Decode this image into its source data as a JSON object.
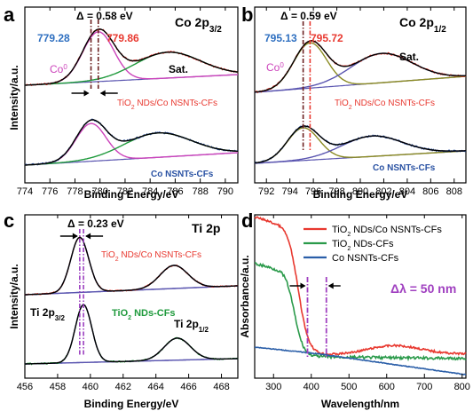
{
  "colors": {
    "black": "#000000",
    "red": "#e8382f",
    "blue": "#2a52a3",
    "green": "#1f9a3c",
    "magenta": "#cc44bb",
    "olive": "#8a8a22",
    "purple": "#5a55b0",
    "value_blue": "#2e6fc0",
    "dashdot_dark": "#6b1f1f",
    "dashdot_violet": "#9b3fc0",
    "spectrum_green": "#2a9a4a",
    "spectrum_blue": "#2a5ea8",
    "annotation_violet": "#a040c0"
  },
  "chart_data": [
    {
      "panel": "a",
      "type": "line",
      "title": "Co 2p3/2",
      "title_main": "Co 2p",
      "title_sub": "3/2",
      "xlabel": "Binding Energy/eV",
      "ylabel": "Intensity/a.u.",
      "xlim": [
        774,
        791
      ],
      "xticks": [
        774,
        776,
        778,
        780,
        782,
        784,
        786,
        788,
        790
      ],
      "reversed_x": false,
      "annotations": {
        "delta_text": "Δ = 0.58 eV",
        "value_left": "779.28",
        "value_right": "779.86",
        "peak_label": "Co0",
        "peak_label_main": "Co",
        "peak_label_sup": "0",
        "sat_label": "Sat.",
        "legend_top": "TiO2 NDs/Co NSNTs-CFs",
        "legend_top_a": "TiO",
        "legend_top_sub": "2",
        "legend_top_b": " NDs/Co NSNTs-CFs",
        "legend_bottom": "Co NSNTs-CFs",
        "dashdot_lines_x": [
          779.28,
          779.86
        ]
      },
      "curves": {
        "top_peak1": {
          "center": 779.86,
          "width": 1.25,
          "height": 1.0
        },
        "top_peak2": {
          "center": 785.4,
          "width": 2.6,
          "height": 0.52
        },
        "bottom_peak1": {
          "center": 779.28,
          "width": 1.2,
          "height": 0.85
        },
        "bottom_peak2": {
          "center": 784.6,
          "width": 2.7,
          "height": 0.55
        }
      }
    },
    {
      "panel": "b",
      "type": "line",
      "title": "Co 2p1/2",
      "title_main": "Co 2p",
      "title_sub": "1/2",
      "xlabel": "Binding Energy/eV",
      "ylabel": "",
      "xlim": [
        791,
        809
      ],
      "xticks": [
        792,
        794,
        796,
        798,
        800,
        802,
        804,
        806,
        808
      ],
      "annotations": {
        "delta_text": "Δ = 0.59 eV",
        "value_left": "795.13",
        "value_right": "795.72",
        "peak_label": "Co0",
        "peak_label_main": "Co",
        "peak_label_sup": "0",
        "sat_label": "Sat.",
        "legend_top": "TiO2 NDs/Co NSNTs-CFs",
        "legend_top_a": "TiO",
        "legend_top_sub": "2",
        "legend_top_b": " NDs/Co NSNTs-CFs",
        "legend_bottom": "Co NSNTs-CFs",
        "dashdot_lines_x": [
          795.13,
          795.72
        ]
      },
      "curves": {
        "top_peak1": {
          "center": 795.72,
          "width": 1.4,
          "height": 0.85
        },
        "top_peak2": {
          "center": 801.8,
          "width": 2.6,
          "height": 0.55
        },
        "bottom_peak1": {
          "center": 795.13,
          "width": 1.35,
          "height": 0.8
        },
        "bottom_peak2": {
          "center": 801.0,
          "width": 2.6,
          "height": 0.5
        }
      }
    },
    {
      "panel": "c",
      "type": "line",
      "title": "Ti 2p",
      "xlabel": "Binding Energy/eV",
      "ylabel": "Intensity/a.u.",
      "xlim": [
        456,
        469
      ],
      "xticks": [
        456,
        458,
        460,
        462,
        464,
        466,
        468
      ],
      "annotations": {
        "delta_text": "Δ = 0.23 eV",
        "legend_top": "TiO2 NDs/Co NSNTs-CFs",
        "legend_top_a": "TiO",
        "legend_top_sub": "2",
        "legend_top_b": " NDs/Co NSNTs-CFs",
        "legend_bottom": "TiO2 NDs-CFs",
        "legend_bottom_a": "TiO",
        "legend_bottom_sub": "2",
        "legend_bottom_b": " NDs-CFs",
        "peak_label_left": "Ti 2p3/2",
        "peak_label_left_main": "Ti 2p",
        "peak_label_left_sub": "3/2",
        "peak_label_right": "Ti 2p1/2",
        "peak_label_right_main": "Ti 2p",
        "peak_label_right_sub": "1/2",
        "dashdot_lines_x": [
          459.35,
          459.58
        ]
      },
      "curves": {
        "top_peak1": {
          "center": 459.35,
          "width": 0.55,
          "height": 1.0
        },
        "top_peak2": {
          "center": 465.1,
          "width": 0.85,
          "height": 0.42
        },
        "bottom_peak1": {
          "center": 459.58,
          "width": 0.5,
          "height": 1.05
        },
        "bottom_peak2": {
          "center": 465.3,
          "width": 0.8,
          "height": 0.4
        }
      }
    },
    {
      "panel": "d",
      "type": "line",
      "title": "",
      "xlabel": "Wavelength/nm",
      "ylabel": "Absorbance/a.u.",
      "xlim": [
        250,
        810
      ],
      "xticks": [
        300,
        400,
        500,
        600,
        700,
        800
      ],
      "legend_placement": "top-right",
      "series": [
        {
          "name": "TiO2 NDs/Co NSNTs-CFs",
          "name_a": "TiO",
          "name_sub": "2",
          "name_b": " NDs/Co NSNTs-CFs",
          "color_key": "red"
        },
        {
          "name": "TiO2 NDs-CFs",
          "name_a": "TiO",
          "name_sub": "2",
          "name_b": " NDs-CFs",
          "color_key": "spectrum_green"
        },
        {
          "name": "Co NSNTs-CFs",
          "name_a": "Co NSNTs-CFs",
          "name_sub": "",
          "name_b": "",
          "color_key": "spectrum_blue"
        }
      ],
      "annotations": {
        "delta_text": "Δλ = 50 nm",
        "dashdot_lines_x": [
          390,
          440
        ]
      }
    }
  ]
}
